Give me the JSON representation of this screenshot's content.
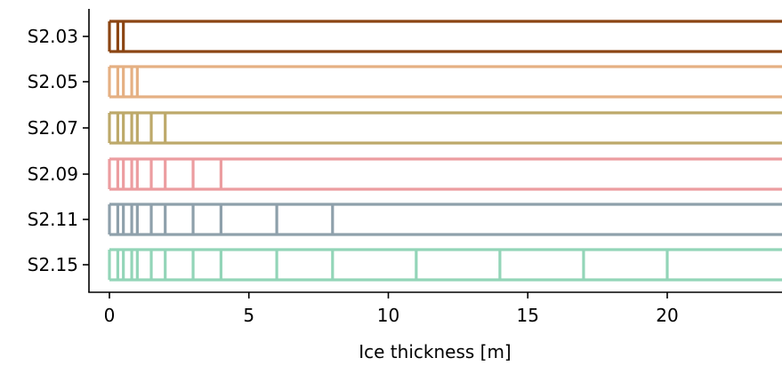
{
  "chart_data": {
    "type": "bar",
    "orientation": "horizontal",
    "title": "",
    "xlabel": "Ice thickness [m]",
    "ylabel": "",
    "xlim": [
      -0.7,
      24
    ],
    "xticks": [
      0,
      5,
      10,
      15,
      20
    ],
    "xtick_labels": [
      "0",
      "5",
      "10",
      "15",
      "20"
    ],
    "grid": false,
    "legend": "none",
    "categories": [
      "S2.03",
      "S2.05",
      "S2.07",
      "S2.09",
      "S2.11",
      "S2.15"
    ],
    "series": [
      {
        "category": "S2.03",
        "color": "#8B4513",
        "bin_edges": [
          0,
          0.3,
          0.5
        ]
      },
      {
        "category": "S2.05",
        "color": "#E5B083",
        "bin_edges": [
          0,
          0.3,
          0.5,
          0.8,
          1.0
        ]
      },
      {
        "category": "S2.07",
        "color": "#BDA96A",
        "bin_edges": [
          0,
          0.3,
          0.5,
          0.8,
          1.0,
          1.5,
          2.0
        ]
      },
      {
        "category": "S2.09",
        "color": "#EC9DA0",
        "bin_edges": [
          0,
          0.3,
          0.5,
          0.8,
          1.0,
          1.5,
          2.0,
          3.0,
          4.0
        ]
      },
      {
        "category": "S2.11",
        "color": "#8EA0AB",
        "bin_edges": [
          0,
          0.3,
          0.5,
          0.8,
          1.0,
          1.5,
          2.0,
          3.0,
          4.0,
          6.0,
          8.0
        ]
      },
      {
        "category": "S2.15",
        "color": "#93D5B8",
        "bin_edges": [
          0,
          0.3,
          0.5,
          0.8,
          1.0,
          1.5,
          2.0,
          3.0,
          4.0,
          6.0,
          8.0,
          11.0,
          14.0,
          17.0,
          20.0
        ]
      }
    ]
  }
}
